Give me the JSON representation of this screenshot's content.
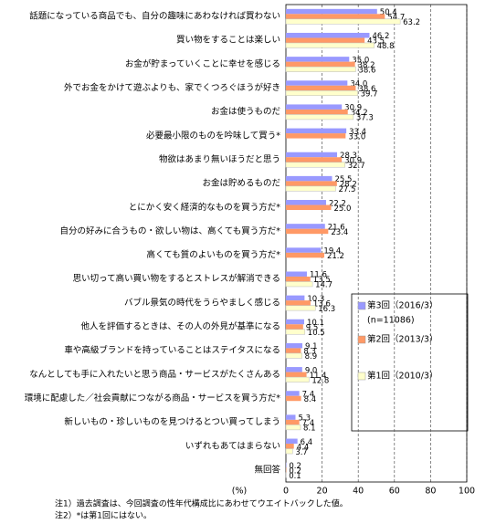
{
  "chart_data": {
    "type": "hbar",
    "categories": [
      "話題になっている商品でも、自分の趣味にあわなければ買わない",
      "買い物をすることは楽しい",
      "お金が貯まっていくことに幸せを感じる",
      "外でお金をかけて遊ぶよりも、家でくつろぐほうが好き",
      "お金は使うものだ",
      "必要最小限のものを吟味して買う*",
      "物欲はあまり無いほうだと思う",
      "お金は貯めるものだ",
      "とにかく安く経済的なものを買う方だ*",
      "自分の好みに合うもの・欲しい物は、高くても買う方だ*",
      "高くても質のよいものを買う方だ*",
      "思い切って高い買い物をするとストレスが解消できる",
      "バブル景気の時代をうらやましく感じる",
      "他人を評価するときは、その人の外見が基準になる",
      "車や高級ブランドを持っていることはステイタスになる",
      "なんとしても手に入れたいと思う商品・サービスがたくさんある",
      "環境に配慮した／社会貢献につながる商品・サービスを買う方だ*",
      "新しいもの・珍しいものを見つけるとつい買ってしまう",
      "いずれもあてはまらない",
      "無回答"
    ],
    "series": [
      {
        "name": "第3回（2016/3）",
        "color": "#9999ff",
        "values": [
          50.4,
          46.2,
          35.0,
          34.0,
          30.9,
          33.4,
          28.3,
          25.5,
          22.2,
          21.6,
          19.4,
          11.6,
          10.3,
          10.1,
          9.1,
          9.0,
          7.4,
          5.3,
          6.4,
          0.2
        ],
        "value_labels": [
          "50.4",
          "46.2",
          "35.0",
          "34.0",
          "30.9",
          "33.4",
          "28.3",
          "25.5",
          "22.2",
          "21.6",
          "19.4",
          "11.6",
          "10.3",
          "10.1",
          "9.1",
          "9.0",
          "7.4",
          "5.3",
          "6.4",
          "0.2"
        ]
      },
      {
        "name": "第2回（2013/3）",
        "color": "#ff9966",
        "values": [
          54.7,
          43.5,
          38.2,
          38.6,
          34.2,
          33.0,
          30.9,
          28.2,
          25.0,
          23.4,
          21.2,
          13.5,
          13.6,
          9.5,
          8.3,
          11.4,
          8.4,
          7.4,
          4.4,
          0.2
        ],
        "value_labels": [
          "54.7",
          "43.5",
          "38.2",
          "38.6",
          "34.2",
          "33.0",
          "30.9",
          "28.2",
          "25.0",
          "23.4",
          "21.2",
          "13.5",
          "13.6",
          "9.5",
          "8.3",
          "11.4",
          "8.4",
          "7.4",
          "4.4",
          "0.2"
        ]
      },
      {
        "name": "第1回（2010/3）",
        "color": "#ffffcc",
        "values": [
          63.2,
          48.8,
          38.6,
          39.7,
          37.3,
          null,
          32.7,
          27.5,
          null,
          null,
          null,
          14.7,
          16.3,
          10.5,
          8.9,
          12.8,
          null,
          8.1,
          3.7,
          0.1
        ],
        "value_labels": [
          "63.2",
          "48.8",
          "38.6",
          "39.7",
          "37.3",
          null,
          "32.7",
          "27.5",
          null,
          null,
          null,
          "14.7",
          "16.3",
          "10.5",
          "8.9",
          "12.8",
          null,
          "8.1",
          "3.7",
          "0.1"
        ]
      }
    ],
    "sample_size": "(n=11086)",
    "xlabel": "(%)",
    "xlim": [
      0,
      100
    ],
    "xticks": [
      0,
      20,
      40,
      60,
      80,
      100
    ],
    "grid": true,
    "notes": [
      "注1）過去調査は、今回調査の性年代構成比にあわせてウエイトバックした値。",
      "注2）*は第1回にはない。"
    ]
  }
}
